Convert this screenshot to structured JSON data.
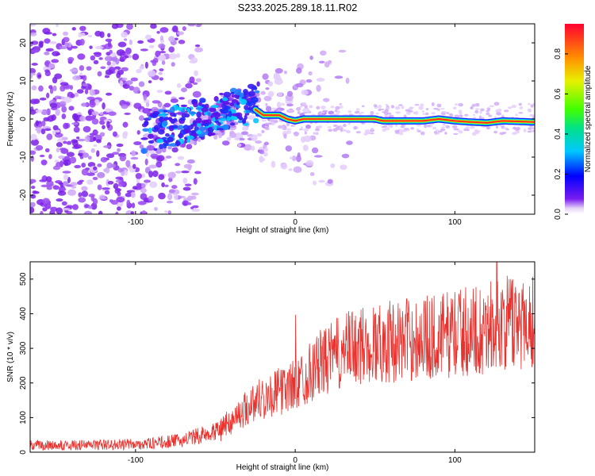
{
  "title": "S233.2025.289.18.11.R02",
  "chart_data": [
    {
      "type": "heatmap",
      "title": "",
      "xlabel": "Height of straight line (km)",
      "ylabel": "Frequency (Hz)",
      "xlim": [
        -166,
        150
      ],
      "ylim": [
        -25,
        25
      ],
      "xticks": [
        -100,
        0,
        100
      ],
      "yticks": [
        -20,
        -10,
        0,
        10,
        20
      ],
      "colorbar": {
        "label": "Normalized spectral amplitude",
        "range": [
          0,
          0.95
        ],
        "ticks": [
          0.0,
          0.2,
          0.4,
          0.6,
          0.8
        ]
      },
      "ridge": {
        "description": "high-amplitude line near 0 Hz",
        "x": [
          -25,
          -20,
          -10,
          -5,
          0,
          5,
          20,
          50,
          55,
          80,
          90,
          100,
          110,
          120,
          130,
          150
        ],
        "y": [
          2.5,
          1,
          1,
          0,
          -0.5,
          0,
          0,
          0,
          -0.5,
          -0.5,
          0,
          -0.5,
          -0.8,
          -1,
          -0.5,
          -0.8
        ]
      }
    },
    {
      "type": "line",
      "title": "",
      "xlabel": "Height of straight line (km)",
      "ylabel": "SNR (10 * v/v)",
      "xlim": [
        -166,
        150
      ],
      "ylim": [
        0,
        550
      ],
      "xticks": [
        -100,
        0,
        100
      ],
      "yticks": [
        0,
        100,
        200,
        300,
        400,
        500
      ],
      "series": [
        {
          "name": "SNR",
          "color": "#e8322e",
          "x": [
            -166,
            -140,
            -110,
            -90,
            -70,
            -55,
            -45,
            -40,
            -35,
            -30,
            -25,
            -20,
            -15,
            -10,
            -5,
            0,
            5,
            10,
            15,
            20,
            25,
            30,
            35,
            40,
            50,
            60,
            70,
            80,
            90,
            100,
            110,
            120,
            130,
            140,
            150
          ],
          "values": [
            20,
            20,
            22,
            25,
            35,
            55,
            75,
            90,
            110,
            130,
            150,
            160,
            165,
            175,
            185,
            195,
            215,
            235,
            255,
            265,
            280,
            290,
            300,
            305,
            315,
            320,
            325,
            330,
            335,
            345,
            350,
            360,
            370,
            380,
            380
          ]
        }
      ]
    }
  ]
}
